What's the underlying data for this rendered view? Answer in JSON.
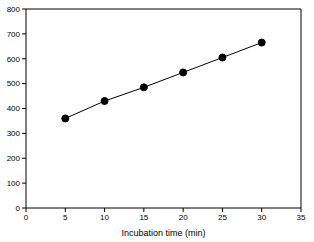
{
  "chart_data": {
    "type": "line",
    "x_label": "Incubation time (min)",
    "x": [
      5,
      10,
      15,
      20,
      25,
      30
    ],
    "values": [
      360,
      430,
      485,
      545,
      605,
      665
    ],
    "xlim": [
      0,
      35
    ],
    "xticks": [
      0,
      5,
      10,
      15,
      20,
      25,
      30,
      35
    ],
    "ylim": [
      0,
      800
    ],
    "yticks": [
      0,
      100,
      200,
      300,
      400,
      500,
      600,
      700,
      800
    ],
    "color": "#000000",
    "marker": "circle",
    "line_style": "solid",
    "grid": false
  }
}
